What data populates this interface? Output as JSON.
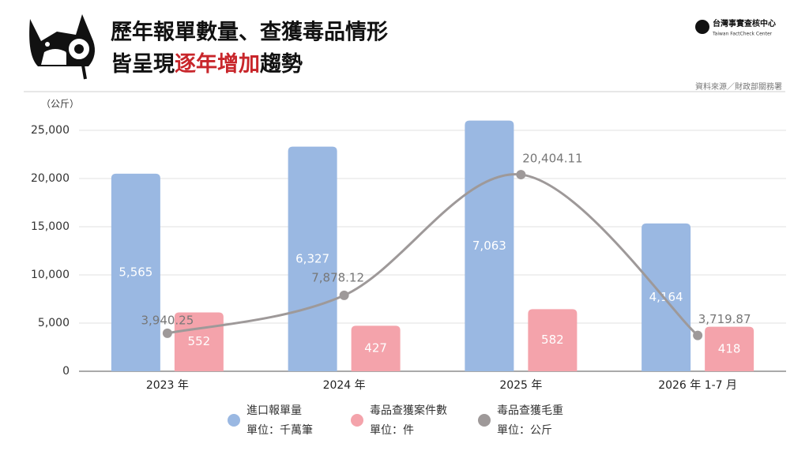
{
  "chart_data": {
    "type": "combo",
    "title": {
      "line1": "歷年報單數量、查獲毒品情形",
      "line2_before": "皆呈現",
      "line2_highlight": "逐年增加",
      "line2_after": "趨勢"
    },
    "brand": {
      "name": "台灣事實查核中心",
      "name_en": "Taiwan FactCheck Center"
    },
    "source": "資料來源／財政部關務署",
    "y_unit_label": "（公斤）",
    "categories": [
      "2023 年",
      "2024 年",
      "2025 年",
      "2026 年 1-7 月"
    ],
    "ylim": [
      0,
      27000
    ],
    "yticks": [
      0,
      {
        "value": 5000,
        "label": "5,000"
      },
      {
        "value": 10000,
        "label": "10,000"
      },
      {
        "value": 15000,
        "label": "15,000"
      },
      {
        "value": 20000,
        "label": "20,000"
      },
      {
        "value": 25000,
        "label": "25,000"
      }
    ],
    "grid": true,
    "series": [
      {
        "name": "進口報單量",
        "unit": "單位：千萬筆",
        "type": "bar",
        "color": "#9ab8e2",
        "ylim": [
          0,
          7330
        ],
        "values": [
          5565,
          6327,
          7063,
          4164
        ],
        "value_labels": [
          "5,565",
          "6,327",
          "7,063",
          "4,164"
        ]
      },
      {
        "name": "毒品查獲案件數",
        "unit": "單位：件",
        "type": "bar",
        "color": "#f4a3ab",
        "ylim": [
          0,
          2440
        ],
        "values": [
          552,
          427,
          582,
          418
        ]
      },
      {
        "name": "毒品查獲毛重",
        "unit": "單位：公斤",
        "type": "line",
        "color": "#9e9999",
        "values": [
          3940.25,
          7878.12,
          20404.11,
          3719.87
        ],
        "value_labels": [
          "3,940.25",
          "7,878.12",
          "20,404.11",
          "3,719.87"
        ]
      }
    ]
  }
}
